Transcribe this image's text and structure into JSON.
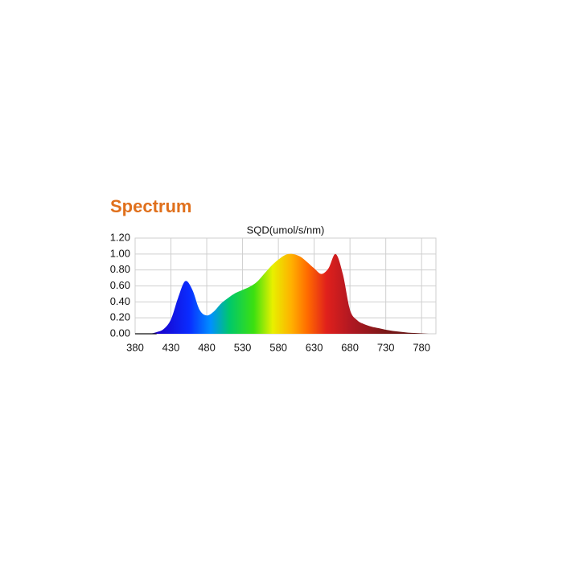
{
  "chart_data": {
    "type": "area",
    "title": "Spectrum",
    "subtitle": "SQD(umol/s/nm)",
    "x": [
      380,
      390,
      400,
      410,
      420,
      430,
      440,
      450,
      460,
      470,
      480,
      490,
      500,
      510,
      520,
      530,
      540,
      550,
      560,
      570,
      580,
      590,
      600,
      610,
      620,
      630,
      640,
      650,
      660,
      670,
      680,
      690,
      700,
      710,
      720,
      730,
      740,
      750,
      760,
      770,
      780,
      790,
      800
    ],
    "values": [
      0,
      0,
      0,
      0.02,
      0.06,
      0.18,
      0.45,
      0.66,
      0.55,
      0.3,
      0.23,
      0.28,
      0.38,
      0.45,
      0.51,
      0.55,
      0.59,
      0.65,
      0.75,
      0.85,
      0.93,
      0.99,
      1.0,
      0.97,
      0.9,
      0.82,
      0.75,
      0.82,
      1.0,
      0.75,
      0.3,
      0.17,
      0.12,
      0.09,
      0.07,
      0.05,
      0.035,
      0.025,
      0.015,
      0.01,
      0.005,
      0,
      0
    ],
    "xlim": [
      380,
      800
    ],
    "xticks": [
      380,
      430,
      480,
      530,
      580,
      630,
      680,
      730,
      780
    ],
    "ylim": [
      0,
      1.2
    ],
    "yticks": [
      {
        "value": 0,
        "label": "0.00"
      },
      {
        "value": 0.2,
        "label": "0.20"
      },
      {
        "value": 0.4,
        "label": "0.40"
      },
      {
        "value": 0.6,
        "label": "0.60"
      },
      {
        "value": 0.8,
        "label": "0.80"
      },
      {
        "value": 1.0,
        "label": "1.00"
      },
      {
        "value": 1.2,
        "label": "1.20"
      }
    ],
    "grid": true
  }
}
